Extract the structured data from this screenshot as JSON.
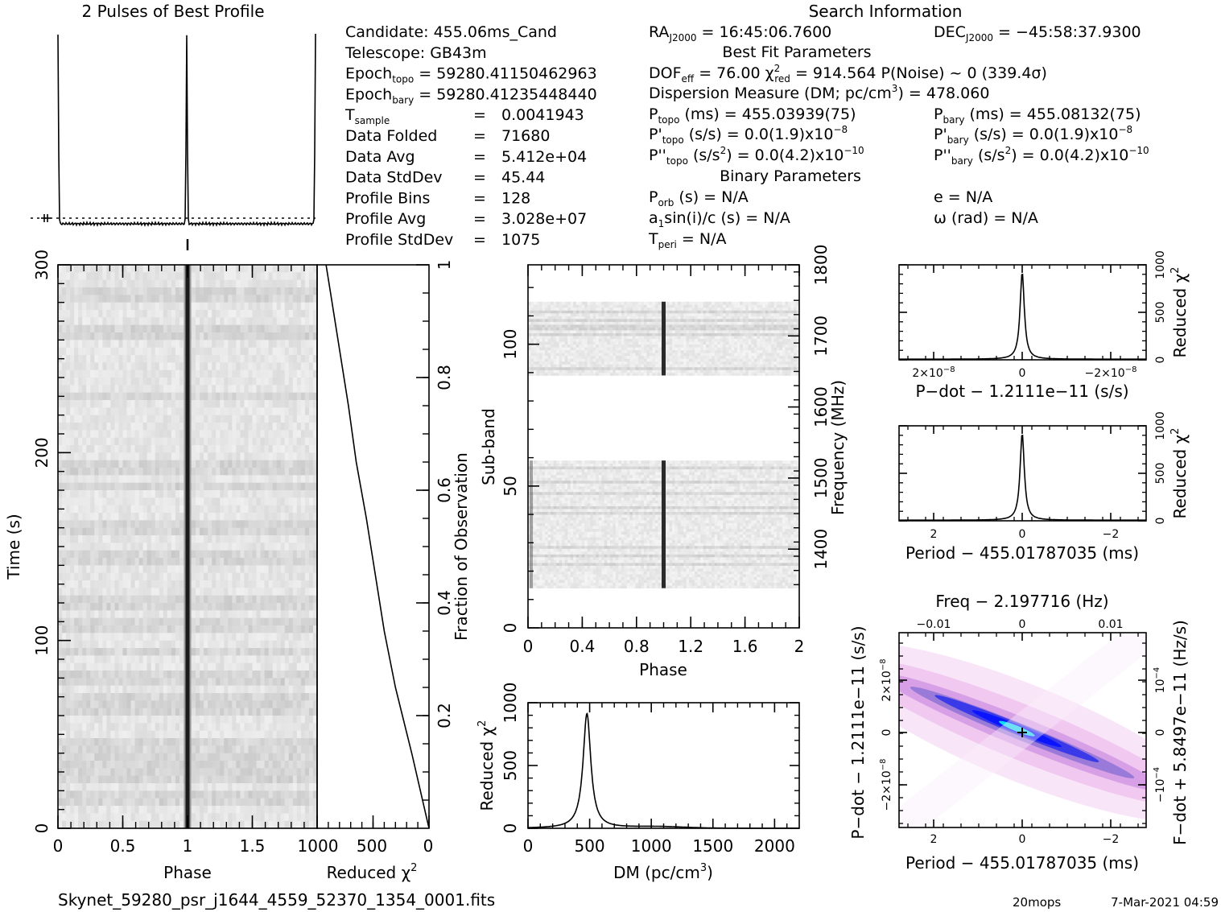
{
  "title": "2 Pulses of Best Profile",
  "search_info_title": "Search Information",
  "filename": "Skynet_59280_psr_j1644_4559_52370_1354_0001.fits",
  "footer_user": "20mops",
  "footer_date": "7-Mar-2021 04:59",
  "info_left": [
    {
      "label": "Candidate:  455.06ms_Cand"
    },
    {
      "label": "Telescope:  GB43m"
    },
    {
      "label": "Epoch",
      "sub": "topo",
      "rest": " = 59280.41150462963"
    },
    {
      "label": "Epoch",
      "sub": "bary",
      "rest": " = 59280.41235448440"
    },
    {
      "label": "T",
      "sub": "sample",
      "eq": "=",
      "val": "0.0041943"
    },
    {
      "label": "Data Folded",
      "eq": "=",
      "val": "71680"
    },
    {
      "label": "Data Avg",
      "eq": "=",
      "val": "5.412e+04"
    },
    {
      "label": "Data StdDev",
      "eq": "=",
      "val": "45.44"
    },
    {
      "label": "Profile Bins",
      "eq": "=",
      "val": "128"
    },
    {
      "label": "Profile Avg",
      "eq": "=",
      "val": "3.028e+07"
    },
    {
      "label": "Profile StdDev",
      "eq": "=",
      "val": "1075"
    }
  ],
  "info": {
    "ra": "RA",
    "ra_sub": "J2000",
    "ra_val": " = 16:45:06.7600",
    "dec": "DEC",
    "dec_sub": "J2000",
    "dec_val": " = −45:58:37.9300",
    "best_fit": "Best Fit Parameters",
    "dof": "DOF",
    "dof_sub": "eff",
    "dof_val": " = 76.00  χ",
    "chi_sup": "2",
    "chi_sub": "red",
    "chi_val": " = 914.564  P(Noise) ~ 0   (339.4σ)",
    "dm_line_a": "Dispersion Measure (DM; pc/cm",
    "dm_sup": "3",
    "dm_line_b": ") = 478.060",
    "ptopo": "P",
    "ptopo_sub": "topo",
    "ptopo_val": " (ms) =  455.03939(75)",
    "pbary": "P",
    "pbary_sub": "bary",
    "pbary_val": " (ms) =  455.08132(75)",
    "pdtopo": "P'",
    "pdtopo_sub": "topo",
    "pdtopo_val": " (s/s) = 0.0(1.9)x10",
    "pdtopo_exp": "−8",
    "pdbary": "P'",
    "pdbary_sub": "bary",
    "pdbary_val": " (s/s) = 0.0(1.9)x10",
    "pdbary_exp": "−8",
    "pddtopo": "P''",
    "pddtopo_sub": "topo",
    "pddtopo_val_a": " (s/s",
    "pddtopo_sup": "2",
    "pddtopo_val_b": ") = 0.0(4.2)x10",
    "pddtopo_exp": "−10",
    "pddbary": "P''",
    "pddbary_sub": "bary",
    "pddbary_val_a": " (s/s",
    "pddbary_sup": "2",
    "pddbary_val_b": ") = 0.0(4.2)x10",
    "pddbary_exp": "−10",
    "binary": "Binary Parameters",
    "porb": "P",
    "porb_sub": "orb",
    "porb_val": " (s) = N/A",
    "ecc": "e = N/A",
    "asini": "a",
    "asini_sub": "1",
    "asini_val": "sin(i)/c (s) = N/A",
    "omega": "ω (rad) = N/A",
    "tperi": "T",
    "tperi_sub": "peri",
    "tperi_val": " = N/A"
  },
  "chart_data": [
    {
      "id": "profile",
      "type": "line",
      "title": "2 Pulses of Best Profile",
      "x": [
        0,
        0.48,
        0.5,
        0.52,
        1.0,
        1.48,
        1.5,
        1.52,
        2.0
      ],
      "description_of_peaks_phase": [
        0.0,
        1.0,
        2.0
      ],
      "ylim": [
        "baseline",
        "peak"
      ]
    },
    {
      "id": "time_phase",
      "type": "heatmap",
      "xlabel": "Phase",
      "ylabel": "Time (s)",
      "xlim": [
        0,
        2
      ],
      "ylim": [
        0,
        300
      ],
      "xticks": [
        "0",
        "0.5",
        "1",
        "1.5"
      ],
      "yticks": [
        "0",
        "100",
        "200",
        "300"
      ],
      "pulse_phase": 1.0,
      "band_rows_time": [
        17,
        27,
        35,
        45,
        62,
        68,
        80,
        94,
        108,
        120,
        145,
        160,
        182,
        191,
        230,
        265,
        285
      ]
    },
    {
      "id": "chi_vs_fraction",
      "type": "line",
      "xlabel": "Reduced χ",
      "xlabel_sup": "2",
      "ylabel": "Fraction of Observation",
      "xlim": [
        1000,
        0
      ],
      "ylim": [
        0,
        1
      ],
      "xticks": [
        "1000",
        "500",
        "0"
      ],
      "yticks": [
        "0.2",
        "0.4",
        "0.6",
        "0.8",
        "1"
      ],
      "x": [
        0,
        150,
        300,
        400,
        480,
        560,
        650,
        720,
        800,
        880,
        920
      ],
      "y": [
        0,
        0.13,
        0.25,
        0.35,
        0.45,
        0.55,
        0.65,
        0.75,
        0.85,
        0.95,
        1.0
      ]
    },
    {
      "id": "subband_phase",
      "type": "heatmap",
      "xlabel": "Phase",
      "ylabel": "Sub-band",
      "ylabel2": "Frequency (MHz)",
      "xlim": [
        0,
        2
      ],
      "ylim": [
        0,
        128
      ],
      "xticks": [
        "0",
        "0.4",
        "0.8",
        "1.2",
        "1.6",
        "2"
      ],
      "yticks": [
        "0",
        "50",
        "100"
      ],
      "yticks_freq": [
        "1400",
        "1500",
        "1600",
        "1700",
        "1800"
      ],
      "data_bands_subband": [
        [
          14,
          59
        ],
        [
          89,
          115
        ]
      ],
      "pulse_phase": 1.0
    },
    {
      "id": "dm_chi",
      "type": "line",
      "xlabel": "DM (pc/cm",
      "xlabel_sup": "3",
      "xlabel_end": ")",
      "ylabel": "Reduced χ",
      "ylabel_sup": "2",
      "xlim": [
        0,
        2200
      ],
      "ylim": [
        0,
        1000
      ],
      "xticks": [
        "0",
        "500",
        "1000",
        "1500",
        "2000"
      ],
      "yticks": [
        "0",
        "500",
        "1000"
      ],
      "peak_x": 478.06,
      "peak_y": 914.564
    },
    {
      "id": "pdot_chi",
      "type": "line",
      "xlabel": "P-dot − 1.2111e-11 (s/s)",
      "ylabel": "Reduced χ",
      "ylabel_sup": "2",
      "xticks": [
        "2×10",
        "0",
        "−2×10"
      ],
      "xtick_exp": "−8",
      "yticks": [
        "0",
        "500",
        "1000"
      ],
      "ylim": [
        0,
        1000
      ],
      "peak_y": 914.564
    },
    {
      "id": "period_chi",
      "type": "line",
      "xlabel": "Period − 455.01787035 (ms)",
      "ylabel": "Reduced χ",
      "ylabel_sup": "2",
      "xticks": [
        "2",
        "0",
        "−2"
      ],
      "yticks": [
        "0",
        "500",
        "1000"
      ],
      "ylim": [
        0,
        1000
      ],
      "peak_y": 914.564
    },
    {
      "id": "p_pdot_plane",
      "type": "heatmap",
      "title": "Freq − 2.197716 (Hz)",
      "xlabel": "Period − 455.01787035 (ms)",
      "ylabel": "P-dot − 1.2111e-11 (s/s)",
      "ylabel2": "F-dot + 5.8497e-11 (Hz/s)",
      "xticks": [
        "2",
        "0",
        "−2"
      ],
      "xticks_top": [
        "−0.01",
        "0",
        "0.01"
      ],
      "yticks": [
        "2×10",
        "0",
        "−2×10"
      ],
      "ytick_exp": "−8",
      "yticks_right": [
        "−10",
        "0",
        "10"
      ],
      "ytick_right_exp": "−4"
    }
  ]
}
